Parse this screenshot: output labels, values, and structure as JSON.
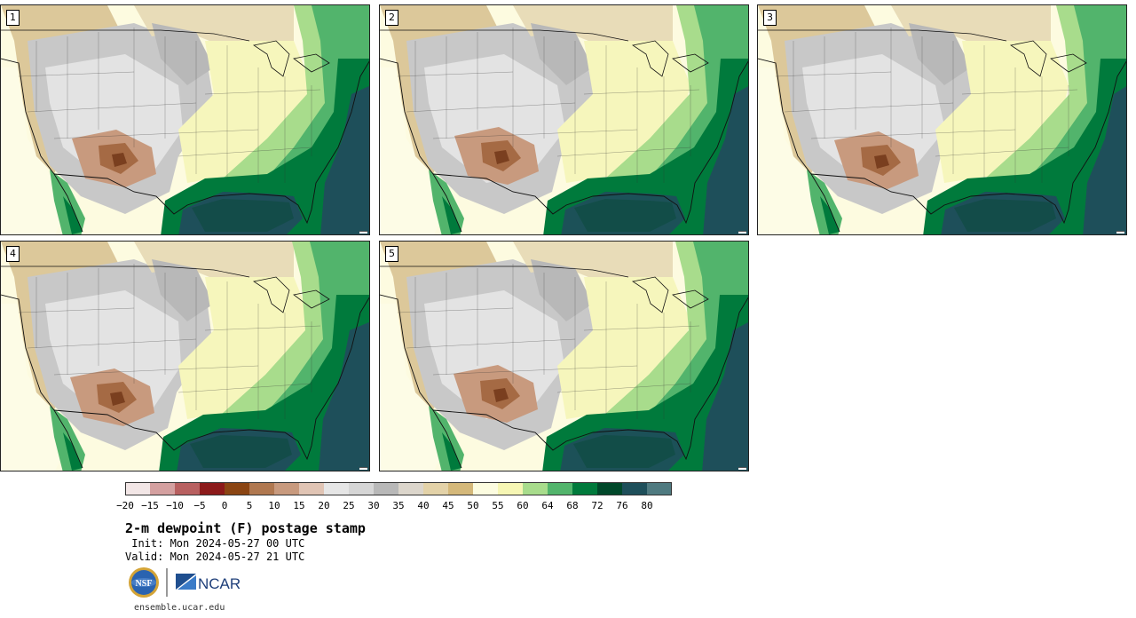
{
  "panels": [
    {
      "label": "1"
    },
    {
      "label": "2"
    },
    {
      "label": "3"
    },
    {
      "label": "4"
    },
    {
      "label": "5"
    }
  ],
  "colorbar": {
    "colors": [
      "#f2e6e6",
      "#d4a0a0",
      "#b86060",
      "#8c1a1a",
      "#8b4513",
      "#b07850",
      "#c89a7e",
      "#e0c4b4",
      "#e6e6e6",
      "#d6d6d6",
      "#b8b8b8",
      "#dcd6cc",
      "#e3d2a8",
      "#d4b87a",
      "#fcfce0",
      "#f6f6b4",
      "#a8dc8c",
      "#52b46c",
      "#007a3c",
      "#00482a",
      "#1e4f5a",
      "#4f7a80"
    ],
    "ticks": [
      "−20",
      "−15",
      "−10",
      "−5",
      "0",
      "5",
      "10",
      "15",
      "20",
      "25",
      "30",
      "35",
      "40",
      "45",
      "50",
      "55",
      "60",
      "64",
      "68",
      "72",
      "76",
      "80"
    ]
  },
  "title": "2-m dewpoint (F) postage stamp",
  "init": " Init: Mon 2024-05-27 00 UTC",
  "valid": "Valid: Mon 2024-05-27 21 UTC",
  "logos": {
    "nsf": "NSF",
    "ncar": "NCAR"
  },
  "url": "ensemble.ucar.edu"
}
